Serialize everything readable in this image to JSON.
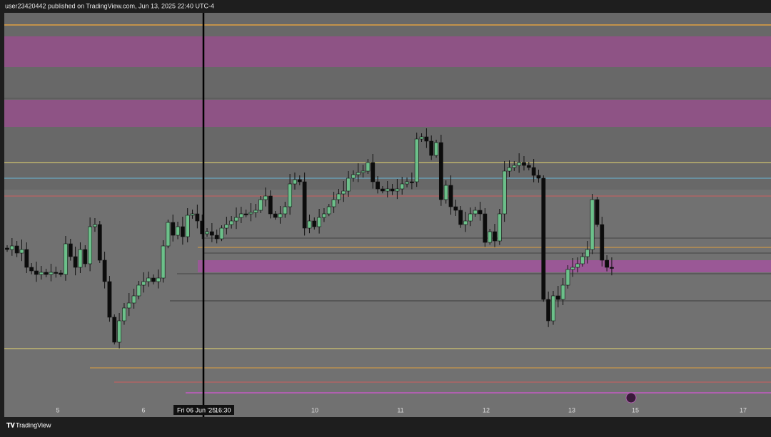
{
  "header": {
    "text": "user23420442 published on TradingView.com, Jun 13, 2025 22:40 UTC-4"
  },
  "time_axis": {
    "labels": [
      "5",
      "6",
      "10",
      "11",
      "12",
      "13",
      "15",
      "17"
    ]
  },
  "crosshair": {
    "date": "Fri 06 Jun '25",
    "time": "16:30"
  },
  "footer": {
    "brand": "TradingView"
  }
}
